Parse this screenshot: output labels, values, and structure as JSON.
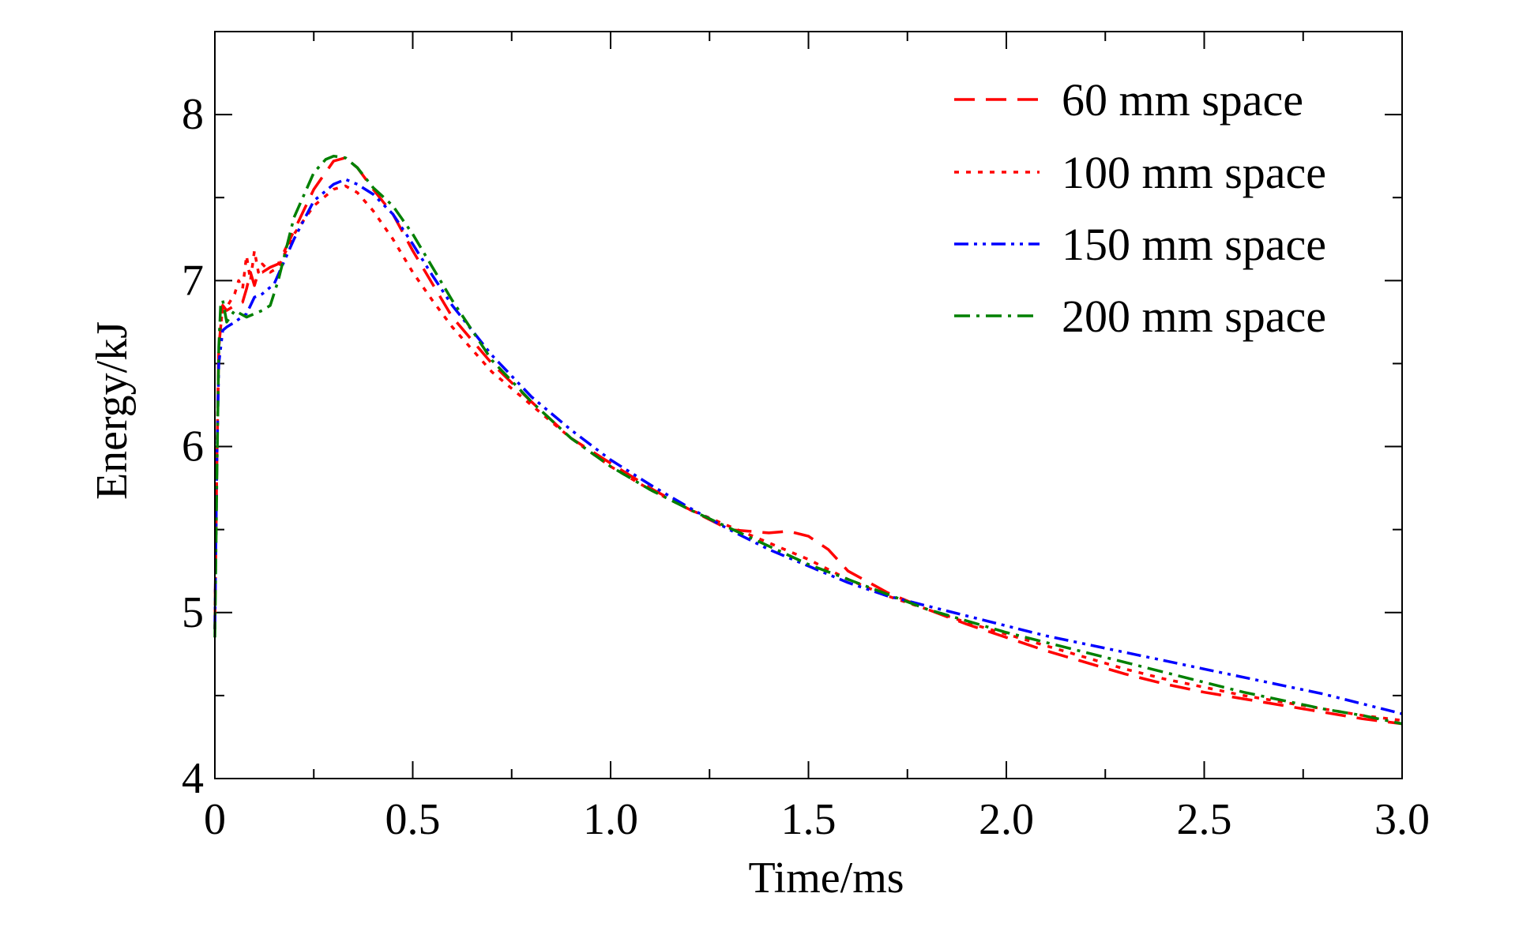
{
  "chart_data": {
    "type": "line",
    "title": "",
    "xlabel": "Time/ms",
    "ylabel": "Energy/kJ",
    "xlim": [
      0,
      3.0
    ],
    "ylim": [
      4,
      8.5
    ],
    "x_ticks": [
      0,
      0.5,
      1.0,
      1.5,
      2.0,
      2.5,
      3.0
    ],
    "x_tick_labels": [
      "0",
      "0.5",
      "1.0",
      "1.5",
      "2.0",
      "2.5",
      "3.0"
    ],
    "y_ticks": [
      4,
      5,
      6,
      7,
      8
    ],
    "y_tick_labels": [
      "4",
      "5",
      "6",
      "7",
      "8"
    ],
    "grid": false,
    "legend_position": "top-right",
    "series": [
      {
        "name": "60 mm space",
        "color": "#ff0000",
        "dash": "dashed",
        "x": [
          0,
          0.005,
          0.01,
          0.02,
          0.03,
          0.05,
          0.07,
          0.08,
          0.09,
          0.1,
          0.11,
          0.12,
          0.14,
          0.16,
          0.2,
          0.25,
          0.3,
          0.33,
          0.36,
          0.4,
          0.45,
          0.5,
          0.55,
          0.6,
          0.7,
          0.8,
          0.9,
          1.0,
          1.1,
          1.2,
          1.3,
          1.4,
          1.45,
          1.5,
          1.55,
          1.6,
          1.7,
          1.8,
          1.9,
          2.0,
          2.1,
          2.2,
          2.3,
          2.4,
          2.5,
          2.6,
          2.7,
          2.8,
          2.9,
          3.0
        ],
        "y": [
          4.9,
          5.9,
          6.6,
          6.85,
          6.82,
          6.85,
          6.87,
          6.95,
          7.05,
          6.97,
          7.05,
          7.05,
          7.08,
          7.1,
          7.3,
          7.55,
          7.72,
          7.74,
          7.68,
          7.55,
          7.4,
          7.18,
          6.98,
          6.78,
          6.5,
          6.27,
          6.05,
          5.9,
          5.75,
          5.62,
          5.5,
          5.48,
          5.49,
          5.46,
          5.38,
          5.25,
          5.12,
          5.02,
          4.93,
          4.85,
          4.77,
          4.7,
          4.63,
          4.57,
          4.52,
          4.48,
          4.44,
          4.4,
          4.36,
          4.33
        ]
      },
      {
        "name": "100 mm space",
        "color": "#ff0000",
        "dash": "dotted",
        "x": [
          0,
          0.005,
          0.01,
          0.02,
          0.03,
          0.05,
          0.06,
          0.07,
          0.08,
          0.09,
          0.1,
          0.11,
          0.12,
          0.14,
          0.16,
          0.2,
          0.25,
          0.3,
          0.33,
          0.36,
          0.4,
          0.45,
          0.5,
          0.55,
          0.6,
          0.7,
          0.8,
          0.9,
          1.0,
          1.1,
          1.2,
          1.3,
          1.4,
          1.5,
          1.6,
          1.7,
          1.8,
          1.9,
          2.0,
          2.1,
          2.2,
          2.3,
          2.4,
          2.5,
          2.6,
          2.7,
          2.8,
          2.9,
          3.0
        ],
        "y": [
          4.9,
          5.9,
          6.6,
          6.85,
          6.84,
          6.92,
          7.0,
          6.95,
          7.15,
          7.0,
          7.18,
          7.05,
          7.1,
          7.05,
          7.08,
          7.28,
          7.45,
          7.55,
          7.57,
          7.53,
          7.42,
          7.25,
          7.05,
          6.88,
          6.72,
          6.45,
          6.25,
          6.05,
          5.88,
          5.74,
          5.62,
          5.52,
          5.42,
          5.32,
          5.2,
          5.1,
          5.02,
          4.94,
          4.87,
          4.8,
          4.73,
          4.66,
          4.6,
          4.55,
          4.5,
          4.46,
          4.42,
          4.38,
          4.35
        ]
      },
      {
        "name": "150 mm space",
        "color": "#0000ff",
        "dash": "dash-dot-dot",
        "x": [
          0,
          0.005,
          0.01,
          0.02,
          0.03,
          0.05,
          0.08,
          0.1,
          0.12,
          0.15,
          0.2,
          0.25,
          0.3,
          0.33,
          0.36,
          0.4,
          0.45,
          0.5,
          0.55,
          0.6,
          0.7,
          0.8,
          0.9,
          1.0,
          1.1,
          1.2,
          1.3,
          1.4,
          1.5,
          1.6,
          1.7,
          1.8,
          1.9,
          2.0,
          2.1,
          2.2,
          2.3,
          2.4,
          2.5,
          2.6,
          2.7,
          2.8,
          2.9,
          3.0
        ],
        "y": [
          4.9,
          5.9,
          6.5,
          6.7,
          6.72,
          6.75,
          6.8,
          6.9,
          6.92,
          6.98,
          7.25,
          7.48,
          7.58,
          7.61,
          7.58,
          7.52,
          7.4,
          7.22,
          7.03,
          6.85,
          6.55,
          6.3,
          6.1,
          5.92,
          5.77,
          5.63,
          5.5,
          5.38,
          5.28,
          5.18,
          5.1,
          5.04,
          4.98,
          4.92,
          4.86,
          4.81,
          4.76,
          4.71,
          4.66,
          4.61,
          4.56,
          4.51,
          4.45,
          4.39
        ]
      },
      {
        "name": "200 mm space",
        "color": "#008000",
        "dash": "dash-dot",
        "x": [
          0,
          0.005,
          0.01,
          0.015,
          0.02,
          0.03,
          0.05,
          0.08,
          0.1,
          0.12,
          0.14,
          0.16,
          0.2,
          0.25,
          0.28,
          0.3,
          0.33,
          0.36,
          0.4,
          0.45,
          0.5,
          0.55,
          0.6,
          0.7,
          0.8,
          0.9,
          1.0,
          1.1,
          1.2,
          1.3,
          1.4,
          1.5,
          1.6,
          1.7,
          1.8,
          1.9,
          2.0,
          2.1,
          2.2,
          2.3,
          2.4,
          2.5,
          2.6,
          2.7,
          2.8,
          2.9,
          3.0
        ],
        "y": [
          4.85,
          5.8,
          6.6,
          6.87,
          6.88,
          6.75,
          6.82,
          6.78,
          6.8,
          6.82,
          6.85,
          7.0,
          7.38,
          7.65,
          7.73,
          7.75,
          7.74,
          7.68,
          7.56,
          7.45,
          7.28,
          7.08,
          6.88,
          6.52,
          6.27,
          6.05,
          5.88,
          5.74,
          5.62,
          5.51,
          5.4,
          5.29,
          5.2,
          5.11,
          5.02,
          4.95,
          4.88,
          4.82,
          4.76,
          4.7,
          4.64,
          4.58,
          4.52,
          4.47,
          4.42,
          4.38,
          4.33
        ]
      }
    ]
  }
}
